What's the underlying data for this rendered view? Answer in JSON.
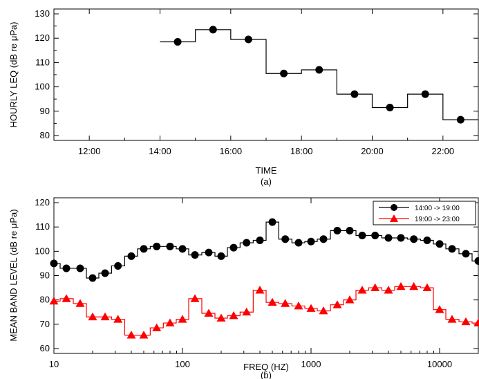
{
  "chart_data": [
    {
      "type": "line",
      "step": true,
      "xlabel": "TIME",
      "ylabel": "HOURLY LEQ (dB re μPa)",
      "caption": "(a)",
      "xlim": [
        11,
        23
      ],
      "ylim": [
        78,
        132
      ],
      "x_ticks": [
        12,
        14,
        16,
        18,
        20,
        22
      ],
      "x_tick_labels": [
        "12:00",
        "14:00",
        "16:00",
        "18:00",
        "20:00",
        "22:00"
      ],
      "y_ticks": [
        80,
        90,
        100,
        110,
        120,
        130
      ],
      "y_tick_labels": [
        "80",
        "90",
        "100",
        "110",
        "120",
        "130"
      ],
      "x": [
        14.5,
        15.5,
        16.5,
        17.5,
        18.5,
        19.5,
        20.5,
        21.5,
        22.5
      ],
      "values": [
        118.5,
        123.5,
        119.5,
        105.5,
        107,
        97,
        91.5,
        97,
        86.5
      ],
      "marker_color": "#000000",
      "grid": false
    },
    {
      "type": "line",
      "step": true,
      "x_scale": "log",
      "xlabel": "FREQ (HZ)",
      "ylabel": "MEAN BAND LEVEL (dB re μPa)",
      "caption": "(b)",
      "xlim": [
        10,
        20000
      ],
      "ylim": [
        58,
        122
      ],
      "x_ticks": [
        10,
        100,
        1000,
        10000
      ],
      "x_tick_labels": [
        "10",
        "100",
        "1000",
        "10000"
      ],
      "y_ticks": [
        60,
        70,
        80,
        90,
        100,
        110,
        120
      ],
      "y_tick_labels": [
        "60",
        "70",
        "80",
        "90",
        "100",
        "110",
        "120"
      ],
      "legend_position": "top-right",
      "grid": false,
      "x": [
        10,
        12.5,
        16,
        20,
        25,
        31.5,
        40,
        50,
        63,
        80,
        100,
        125,
        160,
        200,
        250,
        315,
        400,
        500,
        630,
        800,
        1000,
        1250,
        1600,
        2000,
        2500,
        3150,
        4000,
        5000,
        6300,
        8000,
        10000,
        12500,
        16000,
        20000
      ],
      "series": [
        {
          "name": "14:00 -> 19:00",
          "marker": "circle",
          "color": "#000000",
          "values": [
            95,
            93,
            93,
            89,
            91,
            94,
            98,
            101,
            102,
            102,
            101,
            98.5,
            99.5,
            98,
            101.5,
            103.5,
            104.5,
            112,
            105,
            103.5,
            104,
            105,
            108.5,
            108.5,
            106.5,
            106.5,
            105.5,
            105.5,
            105,
            104.5,
            103,
            101,
            99,
            96
          ]
        },
        {
          "name": "19:00 -> 23:00",
          "marker": "triangle",
          "color": "#ff0000",
          "values": [
            79.5,
            80.5,
            78.5,
            73,
            73,
            72,
            65.5,
            65.5,
            68.5,
            70.5,
            72,
            80.5,
            74.5,
            72.5,
            73.5,
            75,
            84,
            79,
            78.5,
            77.5,
            76.5,
            75.5,
            78,
            80,
            84,
            85,
            84,
            85.5,
            85.5,
            85,
            76,
            72,
            71,
            70.5
          ]
        }
      ]
    }
  ]
}
